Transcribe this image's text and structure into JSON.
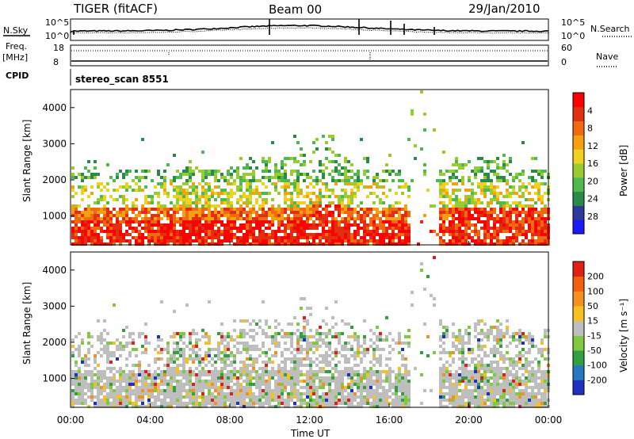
{
  "header": {
    "title": "TIGER (fitACF)",
    "beam": "Beam 00",
    "date": "29/Jan/2010"
  },
  "top_panels": {
    "nsky_label": "N.Sky",
    "nsearch_label": "N.Search",
    "noise_ticks_left": [
      "10^5",
      "10^0"
    ],
    "noise_ticks_right": [
      "10^5",
      "10^0"
    ],
    "freq_label_1": "Freq.",
    "freq_label_2": "[MHz]",
    "freq_ticks": [
      "18",
      "8"
    ],
    "nave_label": "Nave",
    "nave_ticks": [
      "60",
      "0"
    ],
    "cpid_label": "CPID",
    "cpid_value": "stereo_scan 8551"
  },
  "chart_data": [
    {
      "type": "heatmap",
      "name": "power",
      "ylabel": "Slant Range [km]",
      "yticks": [
        "1000",
        "2000",
        "3000",
        "4000"
      ],
      "ylim": [
        200,
        4500
      ],
      "colorbar_label": "Power [dB]",
      "colorbar_ticks": [
        "4",
        "8",
        "12",
        "16",
        "20",
        "24",
        "28"
      ],
      "colorbar_colors": [
        "#1a1aff",
        "#2e3a9a",
        "#2a8a4a",
        "#4fb84f",
        "#99cc33",
        "#f0d020",
        "#f5a010",
        "#f06a10",
        "#e03010",
        "#ff0000"
      ]
    },
    {
      "type": "heatmap",
      "name": "velocity",
      "ylabel": "Slant Range [km]",
      "yticks": [
        "1000",
        "2000",
        "3000",
        "4000"
      ],
      "ylim": [
        200,
        4500
      ],
      "colorbar_label": "Velocity [m s⁻¹]",
      "colorbar_ticks": [
        "200",
        "100",
        "50",
        "15",
        "-15",
        "-50",
        "-100",
        "-200"
      ],
      "colorbar_colors": [
        "#2030c0",
        "#2878c0",
        "#30a040",
        "#80c840",
        "#bebebe",
        "#f5c020",
        "#f59020",
        "#f06010",
        "#e02010"
      ]
    }
  ],
  "xaxis": {
    "label": "Time UT",
    "ticks": [
      "00:00",
      "04:00",
      "08:00",
      "12:00",
      "16:00",
      "20:00",
      "00:00"
    ]
  },
  "colors": {
    "gray": "#c0c0bc",
    "red": "#e8200c",
    "blue": "#1c3ccc"
  }
}
